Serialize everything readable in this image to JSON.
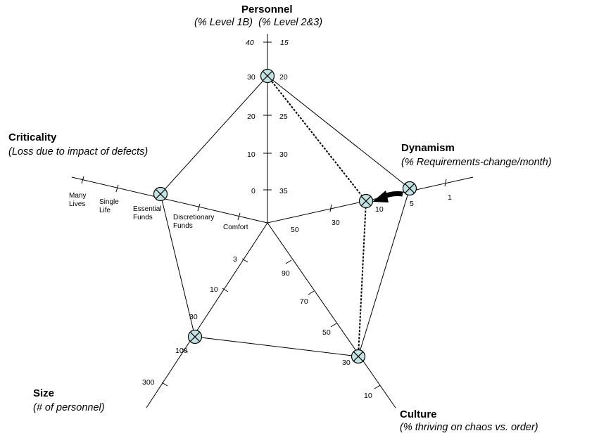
{
  "axes": {
    "personnel": {
      "title": "Personnel",
      "subtitle": "(% Level 1B)  (% Level 2&3)",
      "ticks_left": [
        "40",
        "30",
        "20",
        "10",
        "0"
      ],
      "ticks_right": [
        "15",
        "20",
        "25",
        "30",
        "35"
      ]
    },
    "dynamism": {
      "title": "Dynamism",
      "subtitle": "(% Requirements-change/month)",
      "ticks": [
        "50",
        "30",
        "10",
        "5",
        "1"
      ]
    },
    "culture": {
      "title": "Culture",
      "subtitle": "(% thriving on chaos vs. order)",
      "ticks": [
        "90",
        "70",
        "50",
        "30",
        "10"
      ]
    },
    "size": {
      "title": "Size",
      "subtitle": "(# of personnel)",
      "ticks": [
        "3",
        "10",
        "30",
        "100",
        "300"
      ]
    },
    "criticality": {
      "title": "Criticality",
      "subtitle": "(Loss due to impact of defects)",
      "ticks": [
        "Comfort",
        "Discretionary Funds",
        "Essential Funds",
        "Single Life",
        "Many Lives"
      ]
    }
  },
  "colors": {
    "line": "#000000",
    "marker_fill": "#c4e4e4",
    "marker_stroke": "#000000",
    "arrow": "#000000",
    "dashed": "#000000"
  },
  "icons": {
    "marker": "circle-x-marker-icon",
    "arrow": "arrow-left-icon"
  }
}
